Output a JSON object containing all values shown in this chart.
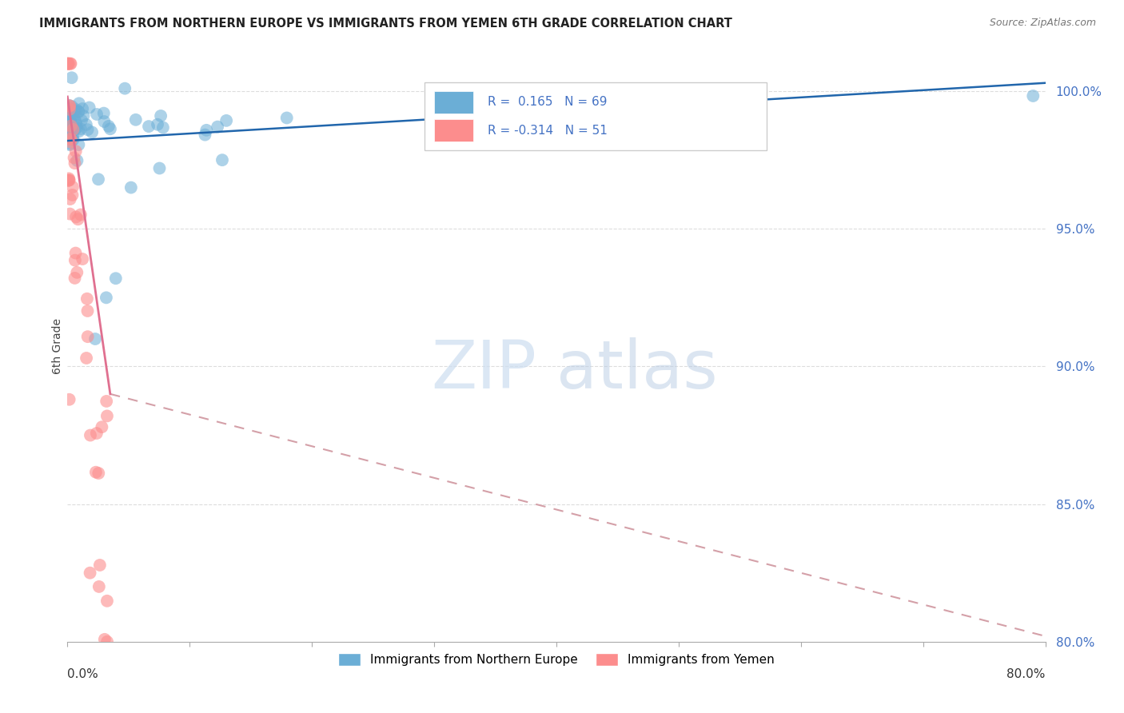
{
  "title": "IMMIGRANTS FROM NORTHERN EUROPE VS IMMIGRANTS FROM YEMEN 6TH GRADE CORRELATION CHART",
  "source": "Source: ZipAtlas.com",
  "ylabel": "6th Grade",
  "y_ticks": [
    80.0,
    85.0,
    90.0,
    95.0,
    100.0
  ],
  "y_tick_labels": [
    "80.0%",
    "85.0%",
    "90.0%",
    "95.0%",
    "100.0%"
  ],
  "blue_color": "#6baed6",
  "pink_color": "#fc8d8d",
  "blue_line_color": "#2166ac",
  "pink_line_solid_color": "#e07090",
  "pink_line_dash_color": "#d4a0a8",
  "legend_blue_text": "R =  0.165   N = 69",
  "legend_pink_text": "R = -0.314   N = 51",
  "legend_blue_color": "#4472c4",
  "watermark_zip_color": "#ccddf0",
  "watermark_atlas_color": "#b8cce4"
}
